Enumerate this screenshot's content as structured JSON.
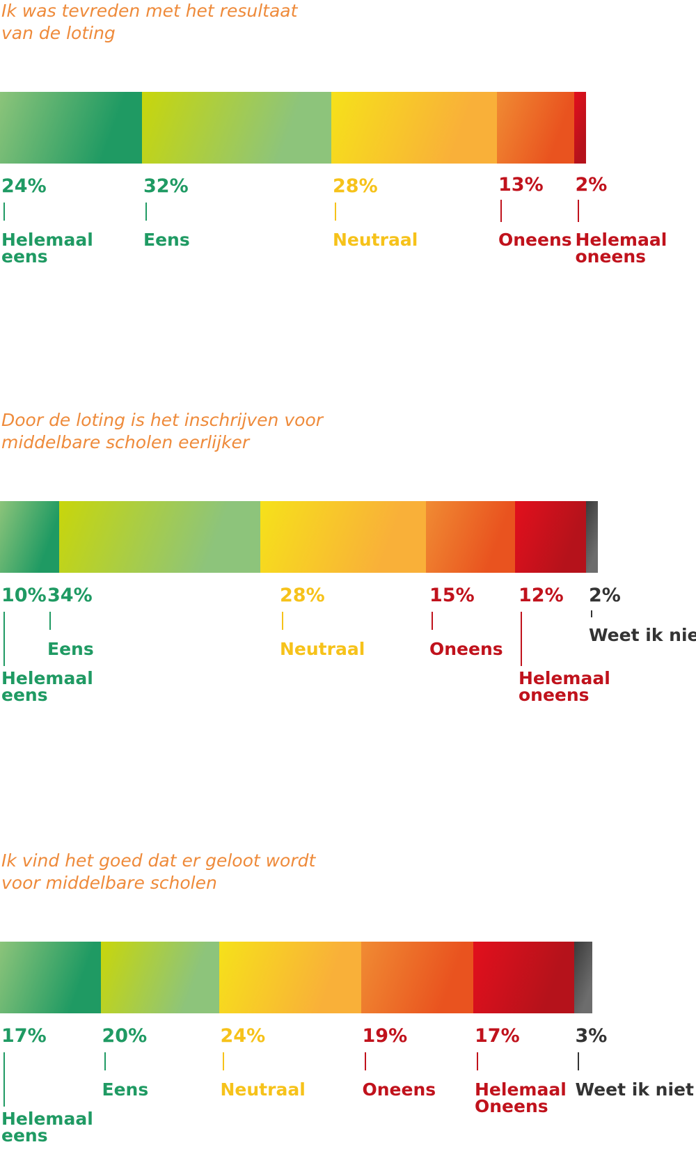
{
  "chart_data": [
    {
      "type": "bar",
      "title": [
        "Ik was tevreden met het resultaat",
        "van de loting"
      ],
      "categories": [
        [
          "Helemaal",
          "eens"
        ],
        [
          "Eens"
        ],
        [
          "Neutraal"
        ],
        [
          "Oneens"
        ],
        [
          "Helemaal",
          "oneens"
        ]
      ],
      "values": [
        24,
        32,
        28,
        13,
        2
      ],
      "value_labels": [
        "24%",
        "32%",
        "28%",
        "13%",
        "2%"
      ],
      "colors": [
        [
          "#8cc47a",
          "#1f9a63"
        ],
        [
          "#c8d60b",
          "#8dc47b"
        ],
        [
          "#f6e11a",
          "#f9b039"
        ],
        [
          "#f08b33",
          "#e9531f"
        ],
        [
          "#e2101c",
          "#b5121b"
        ]
      ],
      "label_colors": [
        "#1f9a63",
        "#1f9a63",
        "#f6c21a",
        "#c0121c",
        "#c0121c"
      ]
    },
    {
      "type": "bar",
      "title": [
        "Door de loting is het inschrijven voor",
        "middelbare scholen eerlijker"
      ],
      "categories": [
        [
          "Helemaal",
          "eens"
        ],
        [
          "Eens"
        ],
        [
          "Neutraal"
        ],
        [
          "Oneens"
        ],
        [
          "Helemaal",
          "oneens"
        ],
        [
          "Weet ik niet"
        ]
      ],
      "values": [
        10,
        34,
        28,
        15,
        12,
        2
      ],
      "value_labels": [
        "10%",
        "34%",
        "28%",
        "15%",
        "12%",
        "2%"
      ],
      "colors": [
        [
          "#8cc47a",
          "#1f9a63"
        ],
        [
          "#c8d60b",
          "#8dc47b"
        ],
        [
          "#f6e11a",
          "#f9b039"
        ],
        [
          "#f08b33",
          "#e9531f"
        ],
        [
          "#e2101c",
          "#b5121b"
        ],
        [
          "#3a3a3a",
          "#6d6d6d"
        ]
      ],
      "label_colors": [
        "#1f9a63",
        "#1f9a63",
        "#f6c21a",
        "#c0121c",
        "#c0121c",
        "#333333"
      ]
    },
    {
      "type": "bar",
      "title": [
        "Ik vind het goed dat er geloot wordt",
        "voor middelbare scholen"
      ],
      "categories": [
        [
          "Helemaal",
          "eens"
        ],
        [
          "Eens"
        ],
        [
          "Neutraal"
        ],
        [
          "Oneens"
        ],
        [
          "Helemaal",
          "Oneens"
        ],
        [
          "Weet ik niet"
        ]
      ],
      "values": [
        17,
        20,
        24,
        19,
        17,
        3
      ],
      "value_labels": [
        "17%",
        "20%",
        "24%",
        "19%",
        "17%",
        "3%"
      ],
      "colors": [
        [
          "#8cc47a",
          "#1f9a63"
        ],
        [
          "#c8d60b",
          "#8dc47b"
        ],
        [
          "#f6e11a",
          "#f9b039"
        ],
        [
          "#f08b33",
          "#e9531f"
        ],
        [
          "#e2101c",
          "#b5121b"
        ],
        [
          "#3a3a3a",
          "#6d6d6d"
        ]
      ],
      "label_colors": [
        "#1f9a63",
        "#1f9a63",
        "#f6c21a",
        "#c0121c",
        "#c0121c",
        "#333333"
      ]
    }
  ]
}
